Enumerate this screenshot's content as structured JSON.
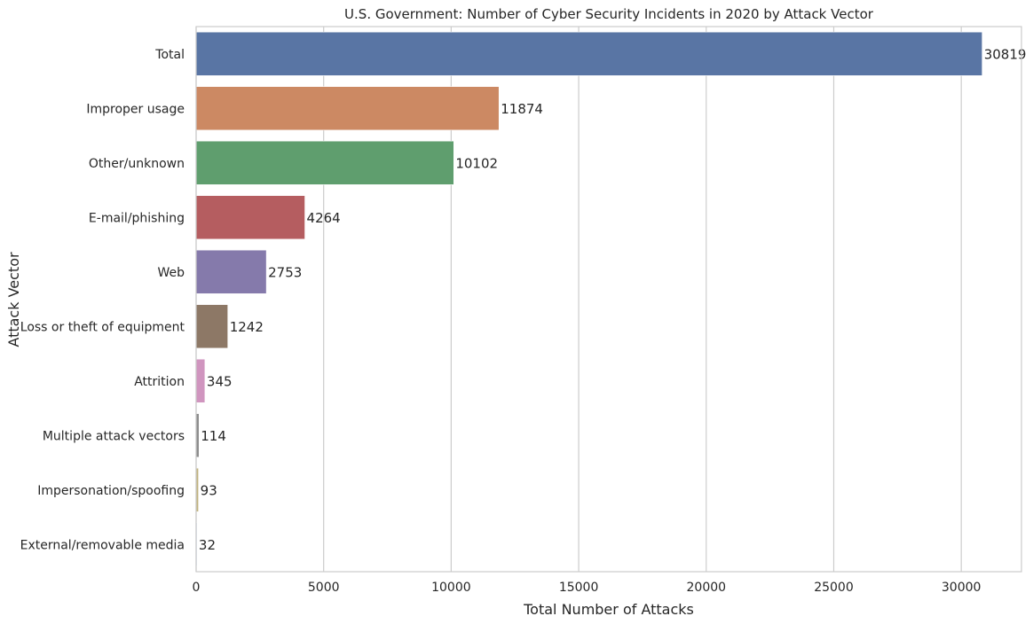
{
  "chart_data": {
    "type": "bar",
    "orientation": "horizontal",
    "title": "U.S. Government: Number of Cyber Security Incidents in 2020 by Attack Vector",
    "xlabel": "Total Number of Attacks",
    "ylabel": "Attack Vector",
    "xlim": [
      0,
      32360
    ],
    "xticks": [
      0,
      5000,
      10000,
      15000,
      20000,
      25000,
      30000
    ],
    "grid": "vertical",
    "categories": [
      "Total",
      "Improper usage",
      "Other/unknown",
      "E-mail/phishing",
      "Web",
      "Loss or theft of equipment",
      "Attrition",
      "Multiple attack vectors",
      "Impersonation/spoofing",
      "External/removable media"
    ],
    "values": [
      30819,
      11874,
      10102,
      4264,
      2753,
      1242,
      345,
      114,
      93,
      32
    ],
    "colors": [
      "#5975a4",
      "#cc8963",
      "#5f9e6e",
      "#b55d60",
      "#857aab",
      "#8d7866",
      "#d095bf",
      "#8c8c8c",
      "#c1b37f",
      "#638ccc"
    ]
  }
}
